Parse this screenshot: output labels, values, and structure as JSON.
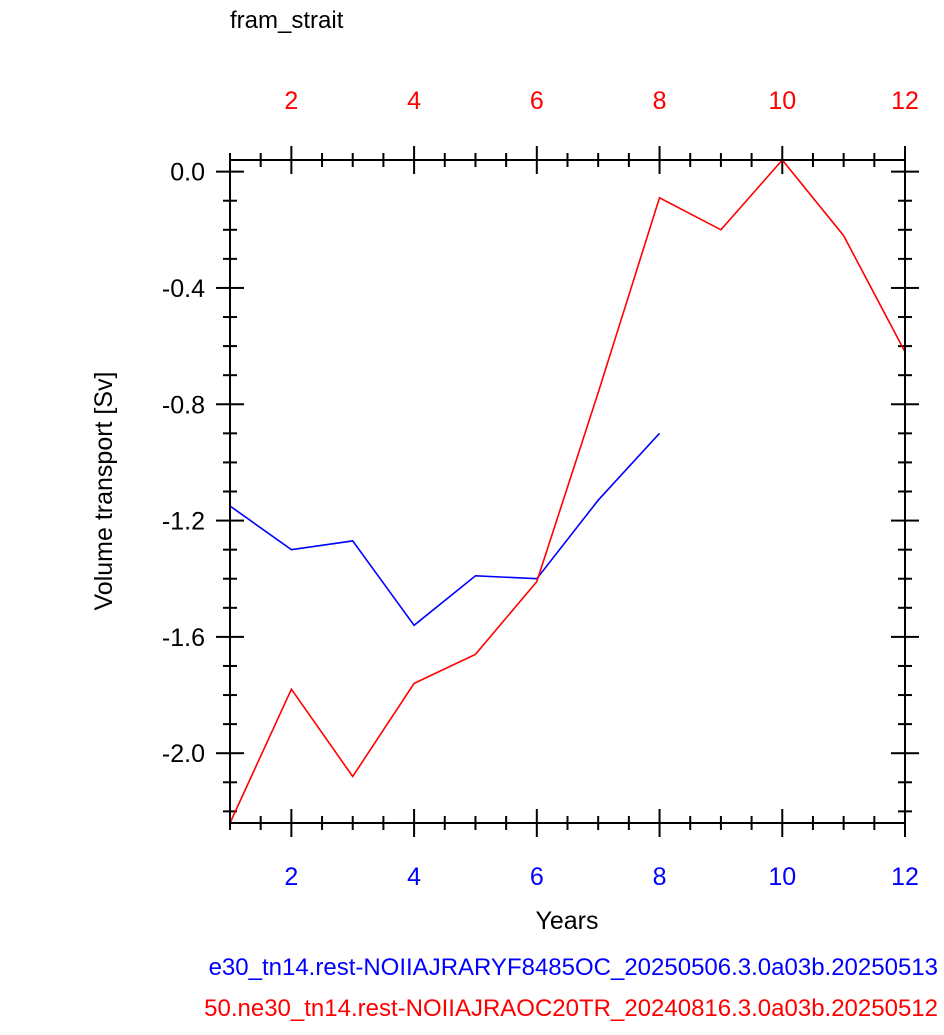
{
  "chart_data": {
    "type": "line",
    "title": "fram_strait",
    "xlabel": "Years",
    "ylabel": "Volume transport [Sv]",
    "xlim": [
      1,
      12
    ],
    "ylim": [
      -2.24,
      0.04
    ],
    "bottom_axis": {
      "ticks": [
        2,
        4,
        6,
        8,
        10,
        12
      ],
      "tick_labels": [
        "2",
        "4",
        "6",
        "8",
        "10",
        "12"
      ],
      "color": "#0000ff"
    },
    "top_axis": {
      "ticks": [
        2,
        4,
        6,
        8,
        10,
        12
      ],
      "tick_labels": [
        "2",
        "4",
        "6",
        "8",
        "10",
        "12"
      ],
      "color": "#ff0000"
    },
    "y_ticks": [
      0.0,
      -0.4,
      -0.8,
      -1.2,
      -1.6,
      -2.0
    ],
    "y_tick_labels": [
      "0.0",
      "-0.4",
      "-0.8",
      "-1.2",
      "-1.6",
      "-2.0"
    ],
    "grid": false,
    "series": [
      {
        "color": "#0000ff",
        "x": [
          1,
          2,
          3,
          4,
          5,
          6,
          7,
          8
        ],
        "y": [
          -1.15,
          -1.3,
          -1.27,
          -1.56,
          -1.39,
          -1.4,
          -1.13,
          -0.9
        ]
      },
      {
        "color": "#ff0000",
        "x": [
          1,
          2,
          3,
          4,
          5,
          6,
          7,
          8,
          9,
          10,
          11,
          12
        ],
        "y": [
          -2.24,
          -1.78,
          -2.08,
          -1.76,
          -1.66,
          -1.41,
          -0.76,
          -0.09,
          -0.2,
          0.04,
          -0.22,
          -0.62
        ]
      }
    ]
  },
  "captions": [
    {
      "text": "e30_tn14.rest-NOIIAJRARYF8485OC_20250506.3.0a03b.20250513",
      "color": "#0000ff"
    },
    {
      "text": "50.ne30_tn14.rest-NOIIAJRAOC20TR_20240816.3.0a03b.20250512",
      "color": "#ff0000"
    }
  ]
}
